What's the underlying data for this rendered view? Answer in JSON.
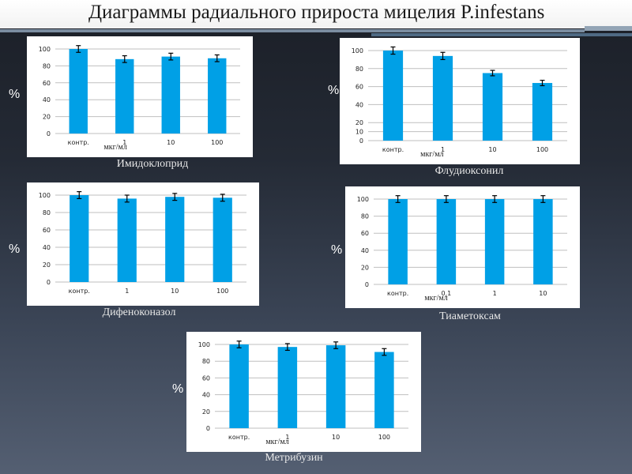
{
  "title": "Диаграммы радиального прироста мицелия P.infestans",
  "colors": {
    "bar": "#00a0e6",
    "grid": "#bfbfbf",
    "panel": "#ffffff"
  },
  "percent_label": "%",
  "chart_data": [
    {
      "type": "bar",
      "caption": "Имидоклоприд",
      "unit_label": "мкг/мл",
      "categories": [
        "контр.",
        "1",
        "10",
        "100"
      ],
      "values": [
        100,
        88,
        91,
        89
      ],
      "errors": [
        4,
        4,
        4,
        4
      ],
      "ylim": [
        0,
        100
      ],
      "yticks": [
        0,
        20,
        40,
        60,
        80,
        100
      ],
      "grid": true
    },
    {
      "type": "bar",
      "caption": "Флудиоксонил",
      "unit_label": "мкг/мл",
      "categories": [
        "контр.",
        "1",
        "10",
        "100"
      ],
      "values": [
        100,
        94,
        75,
        64
      ],
      "errors": [
        4,
        4,
        3,
        3
      ],
      "ylim": [
        0,
        100
      ],
      "yticks": [
        0,
        10,
        20,
        40,
        60,
        80,
        100
      ],
      "grid": true
    },
    {
      "type": "bar",
      "caption": "Дифеноконазол",
      "unit_label": "",
      "categories": [
        "контр.",
        "1",
        "10",
        "100"
      ],
      "values": [
        100,
        96,
        98,
        97
      ],
      "errors": [
        4,
        4,
        4,
        4
      ],
      "ylim": [
        0,
        100
      ],
      "yticks": [
        0,
        20,
        40,
        60,
        80,
        100
      ],
      "grid": true
    },
    {
      "type": "bar",
      "caption": "Тиаметоксам",
      "unit_label": "мкг/мл",
      "categories": [
        "контр.",
        "0,1",
        "1",
        "10"
      ],
      "values": [
        100,
        100,
        100,
        100
      ],
      "errors": [
        4,
        4,
        4,
        4
      ],
      "ylim": [
        0,
        100
      ],
      "yticks": [
        0,
        20,
        40,
        60,
        80,
        100
      ],
      "grid": true
    },
    {
      "type": "bar",
      "caption": "Метрибузин",
      "unit_label": "мкг/мл",
      "categories": [
        "контр.",
        "1",
        "10",
        "100"
      ],
      "values": [
        100,
        97,
        99,
        91
      ],
      "errors": [
        4,
        4,
        4,
        4
      ],
      "ylim": [
        0,
        100
      ],
      "yticks": [
        0,
        20,
        40,
        60,
        80,
        100
      ],
      "grid": true
    }
  ]
}
